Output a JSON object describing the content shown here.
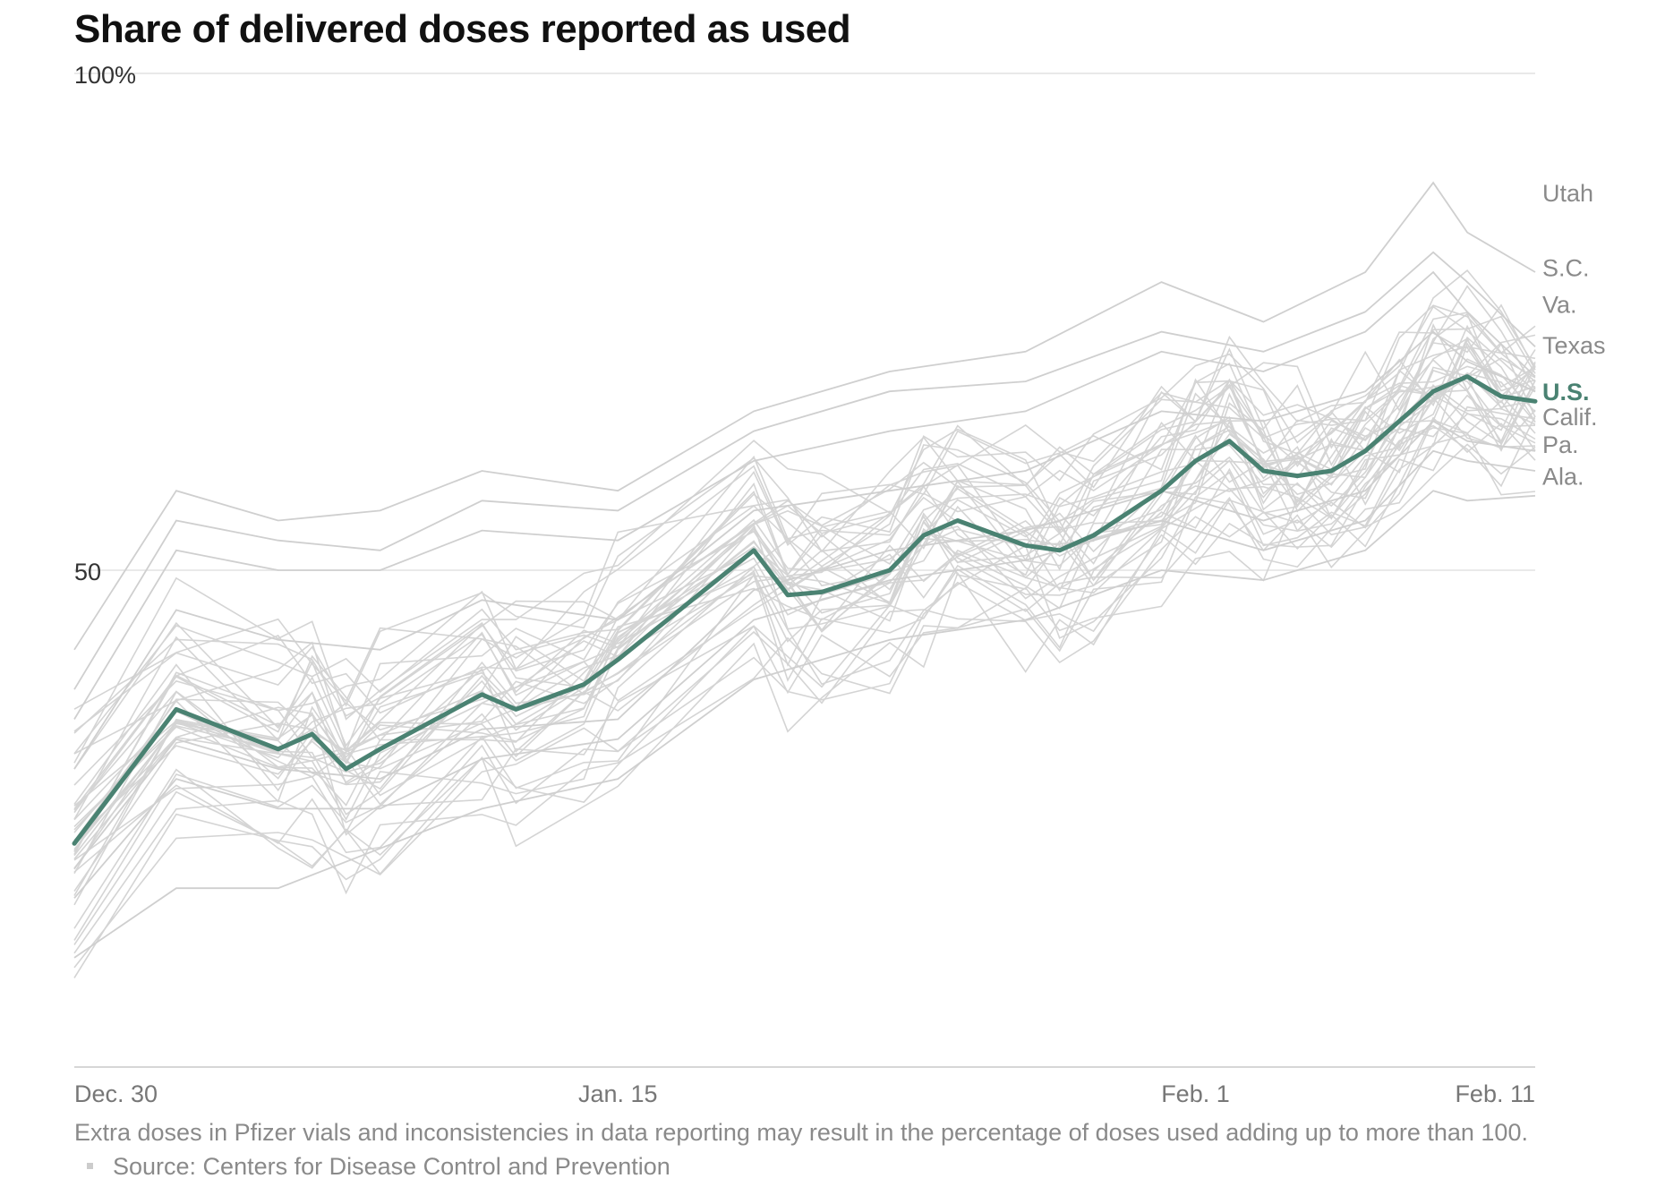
{
  "chart_data": {
    "type": "line",
    "title": "Share of delivered doses reported as used",
    "y_tick_labels": [
      "100%",
      "50"
    ],
    "y_ticks": [
      100,
      50
    ],
    "ylim": [
      0,
      100
    ],
    "x_tick_labels": [
      "Dec. 30",
      "Jan. 15",
      "Feb. 1",
      "Feb. 11"
    ],
    "x_ticks": [
      0,
      16,
      33,
      43
    ],
    "xlim": [
      0,
      43
    ],
    "highlight_color": "#4a8272",
    "background_color": "#d6d6d6",
    "grid": true,
    "series": [
      {
        "name": "U.S.",
        "highlight": true,
        "x": [
          0,
          3,
          6,
          7,
          8,
          9,
          12,
          13,
          15,
          16,
          20,
          21,
          22,
          24,
          25,
          26,
          28,
          29,
          30,
          32,
          33,
          34,
          35,
          36,
          37,
          38,
          39,
          40,
          41,
          42,
          43
        ],
        "values": [
          22.5,
          36,
          32,
          33.5,
          30,
          32,
          37.5,
          36,
          38.5,
          41,
          52,
          47.5,
          47.8,
          50,
          53.5,
          55,
          52.5,
          52,
          53.5,
          58,
          61,
          63,
          60,
          59.5,
          60,
          62,
          65,
          68,
          69.5,
          67.5,
          67
        ]
      },
      {
        "name": "Utah",
        "x": [
          0,
          3,
          6,
          9,
          12,
          16,
          20,
          24,
          28,
          32,
          35,
          38,
          40,
          41,
          43
        ],
        "values": [
          42,
          58,
          55,
          56,
          60,
          58,
          66,
          70,
          72,
          79,
          75,
          80,
          89,
          84,
          80
        ]
      },
      {
        "name": "S.C.",
        "x": [
          0,
          3,
          6,
          9,
          12,
          16,
          20,
          24,
          28,
          32,
          35,
          38,
          40,
          41,
          43
        ],
        "values": [
          38,
          55,
          53,
          52,
          57,
          56,
          64,
          68,
          69,
          74,
          72,
          76,
          82,
          79,
          72.5
        ]
      },
      {
        "name": "Va.",
        "x": [
          0,
          3,
          6,
          9,
          12,
          16,
          20,
          24,
          28,
          32,
          35,
          38,
          40,
          41,
          43
        ],
        "values": [
          35,
          52,
          50,
          50,
          54,
          53,
          61,
          64,
          66,
          72,
          70,
          74,
          80,
          76,
          69.5
        ]
      },
      {
        "name": "Texas",
        "x": [
          0,
          3,
          6,
          9,
          12,
          16,
          20,
          24,
          28,
          32,
          35,
          38,
          40,
          41,
          43
        ],
        "values": [
          30,
          46,
          43,
          42,
          47,
          45,
          56,
          58,
          60,
          66,
          65,
          68,
          74,
          71,
          68
        ]
      },
      {
        "name": "Calif.",
        "x": [
          0,
          3,
          6,
          9,
          12,
          16,
          20,
          24,
          28,
          32,
          35,
          38,
          40,
          41,
          43
        ],
        "values": [
          20,
          33,
          30,
          29,
          34,
          35,
          48,
          52,
          54,
          58,
          55,
          58,
          65,
          63,
          62
        ]
      },
      {
        "name": "Pa.",
        "x": [
          0,
          3,
          6,
          9,
          12,
          16,
          20,
          24,
          28,
          32,
          35,
          38,
          40,
          41,
          43
        ],
        "values": [
          17,
          29,
          26,
          26,
          31,
          33,
          45,
          49,
          51,
          55,
          52,
          55,
          62,
          61,
          60
        ]
      },
      {
        "name": "Ala.",
        "x": [
          0,
          3,
          6,
          9,
          12,
          16,
          20,
          24,
          28,
          32,
          35,
          38,
          40,
          41,
          43
        ],
        "values": [
          11,
          18,
          18,
          22,
          26,
          29,
          39,
          43,
          45,
          50,
          49,
          52,
          58,
          57,
          57.5
        ]
      }
    ],
    "label_positions": [
      {
        "text": "Utah",
        "value": 88
      },
      {
        "text": "S.C.",
        "value": 80.5
      },
      {
        "text": "Va.",
        "value": 76.8
      },
      {
        "text": "Texas",
        "value": 72.7
      },
      {
        "text": "U.S.",
        "value": 68
      },
      {
        "text": "Calif.",
        "value": 65.5
      },
      {
        "text": "Pa.",
        "value": 62.7
      },
      {
        "text": "Ala.",
        "value": 59.5
      }
    ]
  },
  "footnote": {
    "text": "Extra doses in Pfizer vials and inconsistencies in data reporting may result in the percentage of doses used adding up to more than 100.",
    "source": "Source: Centers for Disease Control and Prevention"
  }
}
